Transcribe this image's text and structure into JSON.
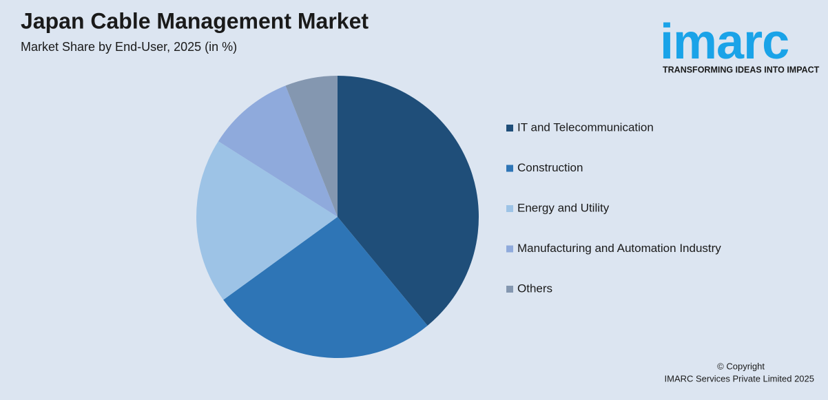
{
  "chart_data": {
    "type": "pie",
    "title": "Japan Cable Management Market",
    "subtitle": "Market Share by End-User, 2025 (in %)",
    "categories": [
      "IT and Telecommunication",
      "Construction",
      "Energy and Utility",
      "Manufacturing and Automation Industry",
      "Others"
    ],
    "values": [
      39,
      26,
      19,
      10,
      6
    ],
    "colors": [
      "#1f4e79",
      "#2e75b6",
      "#9dc3e6",
      "#8faadc",
      "#8497b0"
    ],
    "legend": "right"
  },
  "logo": {
    "name": "imarc",
    "tagline": "TRANSFORMING IDEAS INTO IMPACT"
  },
  "footer": {
    "copyright": "© Copyright",
    "company": "IMARC Services Private Limited 2025"
  }
}
